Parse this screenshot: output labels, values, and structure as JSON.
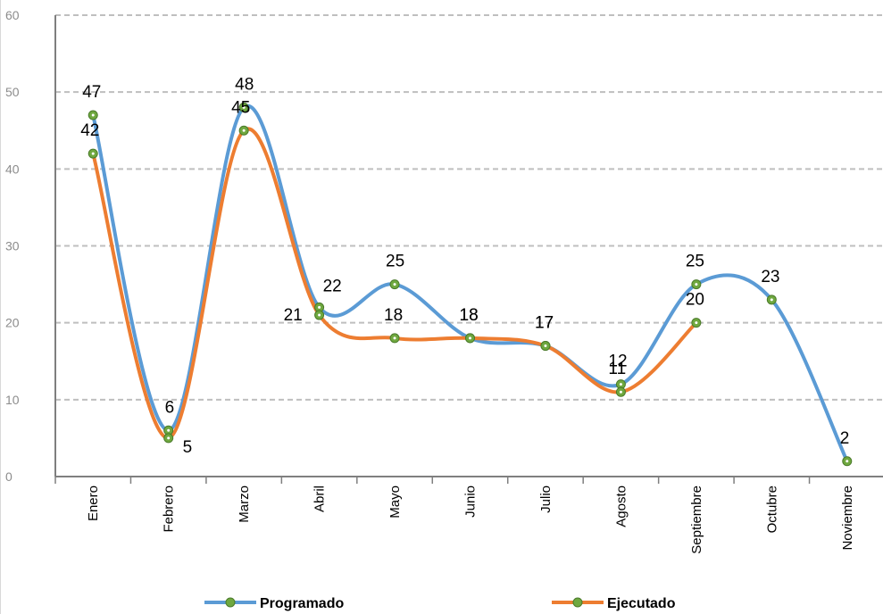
{
  "chart_data": {
    "type": "line",
    "title": "",
    "xlabel": "",
    "ylabel": "",
    "categories": [
      "Enero",
      "Febrero",
      "Marzo",
      "Abril",
      "Mayo",
      "Junio",
      "Julio",
      "Agosto",
      "Septiembre",
      "Octubre",
      "Noviembre"
    ],
    "ylim": [
      0,
      60
    ],
    "yticks": [
      0,
      10,
      20,
      30,
      40,
      50,
      60
    ],
    "grid": true,
    "smooth": true,
    "legend_position": "bottom",
    "series": [
      {
        "name": "Programado",
        "color": "#5B9BD5",
        "marker_color": "#6FA83F",
        "values": [
          47,
          6,
          48,
          22,
          25,
          18,
          17,
          12,
          25,
          23,
          2
        ]
      },
      {
        "name": "Ejecutado",
        "color": "#ED7D31",
        "marker_color": "#6FA83F",
        "values": [
          42,
          5,
          45,
          21,
          18,
          18,
          17,
          11,
          20,
          null,
          null
        ]
      }
    ]
  }
}
